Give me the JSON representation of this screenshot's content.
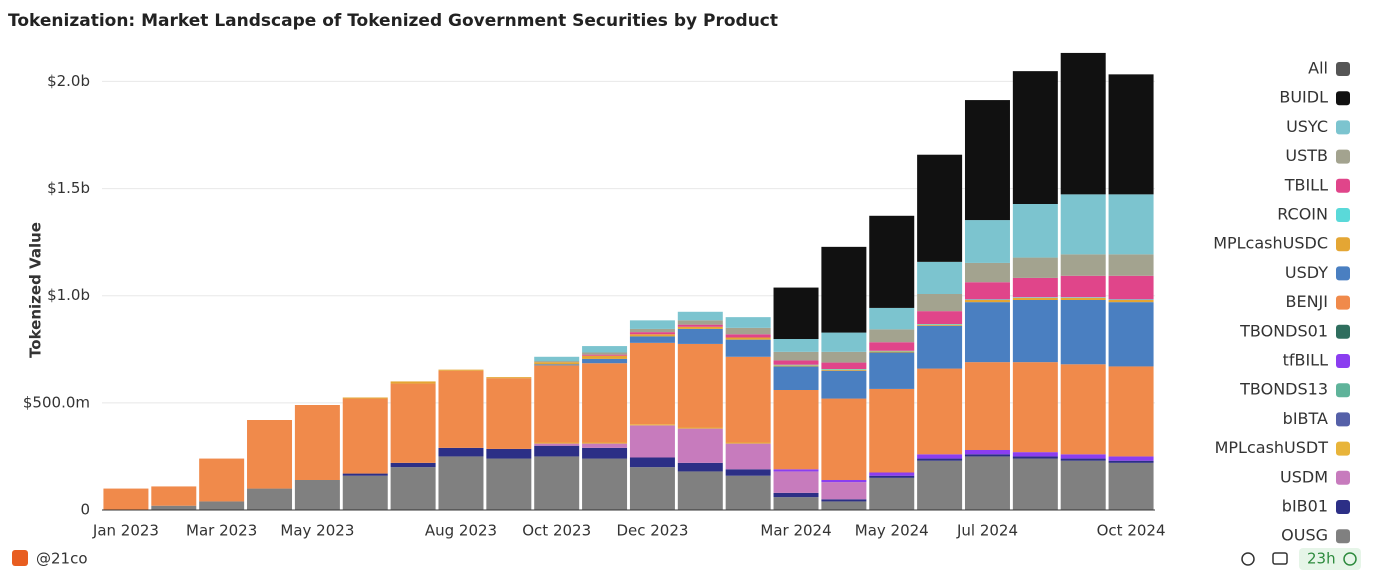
{
  "chart_data": {
    "type": "stacked_bar",
    "title": "Tokenization: Market Landscape of Tokenized Government Securities by Product",
    "y_label": "Tokenized Value",
    "legend_all": "All",
    "footer_source": "@21co",
    "footer_age": "23h",
    "categories": [
      "Jan 2023",
      null,
      "Mar 2023",
      null,
      "May 2023",
      null,
      null,
      "Aug 2023",
      null,
      "Oct 2023",
      null,
      "Dec 2023",
      null,
      null,
      "Mar 2024",
      null,
      "May 2024",
      null,
      "Jul 2024",
      null,
      null,
      "Oct 2024"
    ],
    "ylim": [
      0,
      2100
    ],
    "yticks": [
      0,
      {
        "value": 500,
        "label": "$500.0m"
      },
      {
        "value": 1000,
        "label": "$1.0b"
      },
      {
        "value": 1500,
        "label": "$1.5b"
      },
      {
        "value": 2000,
        "label": "$2.0b"
      }
    ],
    "grid": true,
    "series": [
      {
        "name": "BUIDL",
        "color": "#111111",
        "values": [
          0,
          0,
          0,
          0,
          0,
          0,
          0,
          0,
          0,
          0,
          0,
          0,
          0,
          0,
          240,
          400,
          430,
          500,
          560,
          620,
          660,
          560
        ]
      },
      {
        "name": "USYC",
        "color": "#7cc4cf",
        "values": [
          0,
          0,
          0,
          0,
          0,
          0,
          0,
          0,
          0,
          20,
          30,
          40,
          40,
          50,
          60,
          90,
          100,
          150,
          200,
          250,
          280,
          280
        ]
      },
      {
        "name": "USTB",
        "color": "#a3a38f",
        "values": [
          0,
          0,
          0,
          0,
          0,
          0,
          0,
          0,
          0,
          5,
          10,
          15,
          20,
          30,
          40,
          50,
          60,
          80,
          90,
          95,
          100,
          100
        ]
      },
      {
        "name": "TBILL",
        "color": "#e0458a",
        "values": [
          0,
          0,
          0,
          0,
          0,
          0,
          0,
          0,
          0,
          0,
          5,
          10,
          10,
          15,
          20,
          30,
          40,
          60,
          80,
          90,
          100,
          110
        ]
      },
      {
        "name": "RCOIN",
        "color": "#5ad9d9",
        "values": [
          0,
          0,
          0,
          0,
          0,
          0,
          0,
          0,
          0,
          0,
          0,
          0,
          0,
          0,
          3,
          3,
          3,
          3,
          3,
          3,
          3,
          3
        ]
      },
      {
        "name": "MPLcashUSDC",
        "color": "#e4a634",
        "values": [
          0,
          0,
          0,
          0,
          0,
          5,
          10,
          5,
          5,
          10,
          15,
          10,
          10,
          10,
          5,
          5,
          5,
          5,
          10,
          10,
          10,
          10
        ]
      },
      {
        "name": "USDY",
        "color": "#4a7fc1",
        "values": [
          0,
          0,
          0,
          0,
          0,
          0,
          0,
          0,
          0,
          5,
          20,
          30,
          70,
          80,
          110,
          130,
          170,
          200,
          280,
          290,
          300,
          300
        ]
      },
      {
        "name": "BENJI",
        "color": "#f08a4b",
        "values": [
          100,
          90,
          200,
          320,
          350,
          350,
          370,
          360,
          330,
          360,
          370,
          380,
          390,
          400,
          370,
          380,
          390,
          400,
          410,
          420,
          420,
          420
        ]
      },
      {
        "name": "TBONDS01",
        "color": "#2f6e5e",
        "values": [
          0,
          0,
          0,
          0,
          0,
          0,
          0,
          0,
          0,
          0,
          0,
          0,
          0,
          0,
          0,
          0,
          0,
          0,
          0,
          0,
          0,
          0
        ]
      },
      {
        "name": "tfBILL",
        "color": "#8b3ef0",
        "values": [
          0,
          0,
          0,
          0,
          0,
          0,
          0,
          0,
          0,
          0,
          0,
          0,
          0,
          0,
          10,
          10,
          15,
          20,
          20,
          20,
          20,
          20
        ]
      },
      {
        "name": "TBONDS13",
        "color": "#5fb39a",
        "values": [
          0,
          0,
          0,
          0,
          0,
          0,
          0,
          0,
          0,
          0,
          0,
          0,
          0,
          0,
          0,
          0,
          0,
          0,
          0,
          0,
          0,
          0
        ]
      },
      {
        "name": "bIBTA",
        "color": "#5560a8",
        "values": [
          0,
          0,
          0,
          0,
          0,
          0,
          0,
          0,
          0,
          0,
          0,
          0,
          0,
          0,
          0,
          0,
          0,
          0,
          0,
          0,
          0,
          0
        ]
      },
      {
        "name": "MPLcashUSDT",
        "color": "#e8b43a",
        "values": [
          0,
          0,
          0,
          0,
          0,
          0,
          0,
          0,
          0,
          5,
          5,
          5,
          5,
          5,
          0,
          0,
          0,
          0,
          0,
          0,
          0,
          0
        ]
      },
      {
        "name": "USDM",
        "color": "#c77bbd",
        "values": [
          0,
          0,
          0,
          0,
          0,
          0,
          0,
          0,
          0,
          10,
          20,
          150,
          160,
          120,
          100,
          80,
          0,
          0,
          0,
          0,
          0,
          0
        ]
      },
      {
        "name": "bIB01",
        "color": "#2c2f86",
        "values": [
          0,
          0,
          0,
          0,
          0,
          10,
          20,
          40,
          45,
          50,
          50,
          45,
          40,
          30,
          20,
          10,
          10,
          10,
          10,
          10,
          10,
          10
        ]
      },
      {
        "name": "OUSG",
        "color": "#808080",
        "values": [
          0,
          20,
          40,
          100,
          140,
          160,
          200,
          250,
          240,
          250,
          240,
          200,
          180,
          160,
          60,
          40,
          150,
          230,
          250,
          240,
          230,
          220
        ]
      }
    ]
  }
}
